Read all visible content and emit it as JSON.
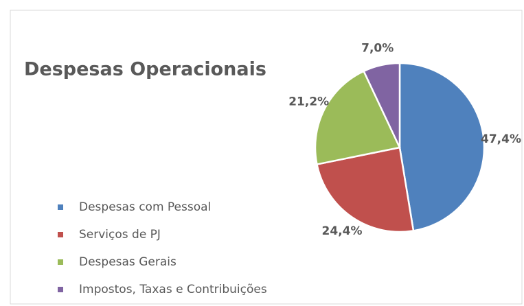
{
  "chart_data": {
    "type": "pie",
    "title": "Despesas Operacionais",
    "categories": [
      "Despesas com Pessoal",
      "Serviços de PJ",
      "Despesas Gerais",
      "Impostos, Taxas e Contribuições"
    ],
    "values": [
      47.4,
      24.4,
      21.2,
      7.0
    ],
    "value_labels": [
      "47,4%",
      "24,4%",
      "21,2%",
      "7,0%"
    ],
    "colors": [
      "#4f81bd",
      "#c0504d",
      "#9bbb59",
      "#8064a2"
    ],
    "legend": "bottom-left"
  }
}
